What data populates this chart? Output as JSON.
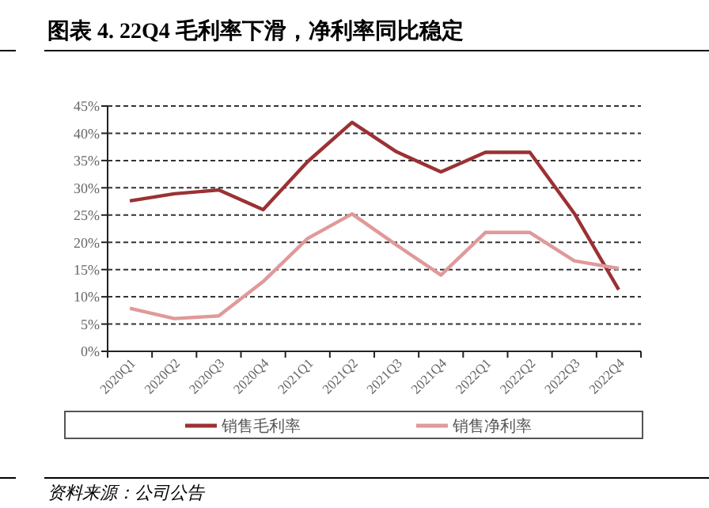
{
  "chart_data": {
    "type": "line",
    "title": "图表 4. 22Q4 毛利率下滑，净利率同比稳定",
    "categories": [
      "2020Q1",
      "2020Q2",
      "2020Q3",
      "2020Q4",
      "2021Q1",
      "2021Q2",
      "2021Q3",
      "2021Q4",
      "2022Q1",
      "2022Q2",
      "2022Q3",
      "2022Q4"
    ],
    "series": [
      {
        "name": "销售毛利率",
        "color": "#9b3134",
        "values": [
          27.6,
          28.9,
          29.6,
          26.0,
          34.8,
          42.0,
          36.6,
          32.9,
          36.5,
          36.5,
          25.3,
          11.3
        ]
      },
      {
        "name": "销售净利率",
        "color": "#e0999a",
        "values": [
          7.9,
          6.0,
          6.5,
          12.8,
          20.7,
          25.2,
          19.5,
          14.0,
          21.8,
          21.8,
          16.6,
          15.2
        ]
      }
    ],
    "ylim": [
      0,
      45
    ],
    "yticks": [
      {
        "value": 0,
        "label": "0%"
      },
      {
        "value": 5,
        "label": "5%"
      },
      {
        "value": 10,
        "label": "10%"
      },
      {
        "value": 15,
        "label": "15%"
      },
      {
        "value": 20,
        "label": "20%"
      },
      {
        "value": 25,
        "label": "25%"
      },
      {
        "value": 30,
        "label": "30%"
      },
      {
        "value": 35,
        "label": "35%"
      },
      {
        "value": 40,
        "label": "40%"
      },
      {
        "value": 45,
        "label": "45%"
      }
    ],
    "grid": "y",
    "legend": "bottom",
    "line_style": "solid",
    "annotations": [
      "资料来源：公司公告"
    ]
  }
}
